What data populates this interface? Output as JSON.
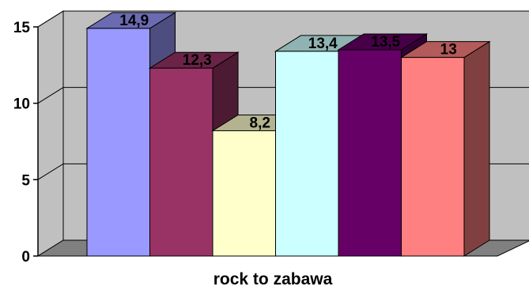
{
  "chart_data": {
    "type": "bar",
    "categories": [
      "rock to zabawa"
    ],
    "series": [
      {
        "values": [
          14.9
        ],
        "color": "#9999ff",
        "label": "14,9"
      },
      {
        "values": [
          12.3
        ],
        "color": "#993366",
        "label": "12,3"
      },
      {
        "values": [
          8.2
        ],
        "color": "#ffffcc",
        "label": "8,2"
      },
      {
        "values": [
          13.4
        ],
        "color": "#ccffff",
        "label": "13,4"
      },
      {
        "values": [
          13.5
        ],
        "color": "#660066",
        "label": "13,5"
      },
      {
        "values": [
          13
        ],
        "color": "#ff8080",
        "label": "13"
      }
    ],
    "xlabel": "rock to zabawa",
    "ylim": [
      0,
      15
    ],
    "yticks": [
      0,
      5,
      10,
      15
    ],
    "grid": true,
    "legend": "none",
    "style": "3d-column",
    "wall_color": "#c0c0c0",
    "floor_color": "#808080"
  }
}
